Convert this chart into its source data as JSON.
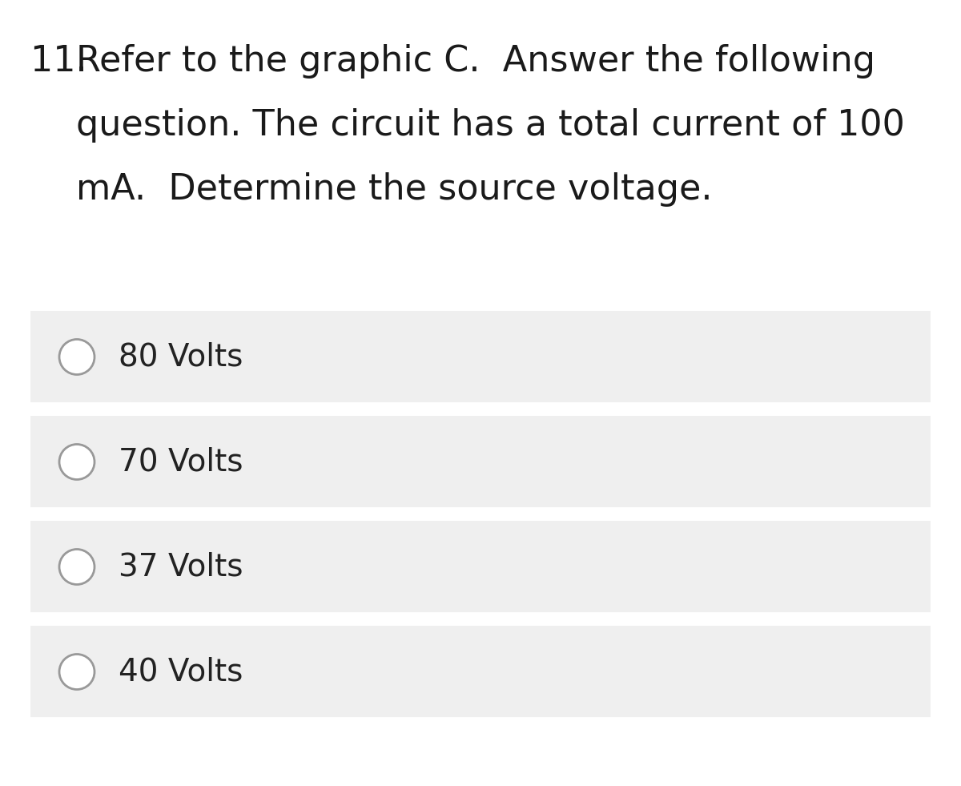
{
  "background_color": "#ffffff",
  "question_number": "11. ",
  "question_text_line1": "Refer to the graphic C.  Answer the following",
  "question_text_line2": "question. The circuit has a total current of 100",
  "question_text_line3": "mA.  Determine the source voltage.",
  "options": [
    "80 Volts",
    "70 Volts",
    "37 Volts",
    "40 Volts"
  ],
  "option_bg_color": "#efefef",
  "option_text_color": "#222222",
  "question_text_color": "#1a1a1a",
  "circle_edge_color": "#999999",
  "circle_face_color": "#ffffff",
  "font_size_question": 32,
  "font_size_option": 28,
  "font_weight_question": "normal"
}
